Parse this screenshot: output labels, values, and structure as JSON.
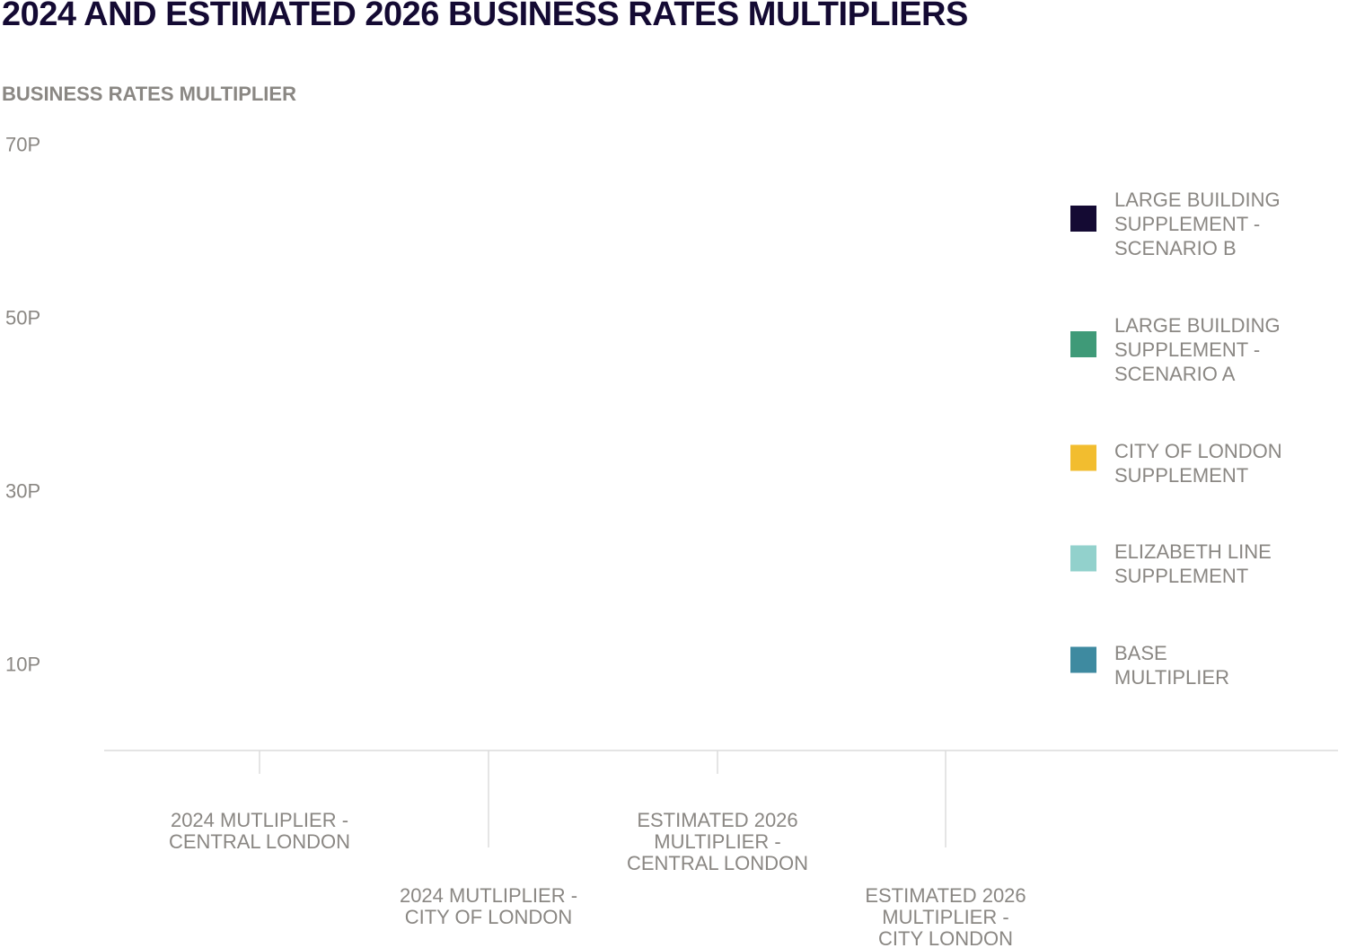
{
  "chart_data": {
    "type": "bar",
    "stacked": true,
    "title": "2024 AND ESTIMATED 2026 BUSINESS RATES MULTIPLIERS",
    "ylabel": "BUSINESS RATES MULTIPLIER",
    "xlabel": "",
    "ylim": [
      0,
      70
    ],
    "yticks": [
      {
        "value": 10,
        "label": "10P"
      },
      {
        "value": 30,
        "label": "30P"
      },
      {
        "value": 50,
        "label": "50P"
      },
      {
        "value": 70,
        "label": "70P"
      }
    ],
    "categories": [
      "2024 MUTLIPLIER - CENTRAL LONDON",
      "2024 MUTLIPLIER - CITY OF LONDON",
      "ESTIMATED 2026 MULTIPLIER - CENTRAL LONDON",
      "ESTIMATED 2026 MULTIPLIER - CITY LONDON"
    ],
    "category_label_lines": [
      [
        "2024 MUTLIPLIER -",
        "CENTRAL LONDON"
      ],
      [
        "2024 MUTLIPLIER -",
        "CITY OF LONDON"
      ],
      [
        "ESTIMATED 2026",
        "MULTIPLIER -",
        "CENTRAL LONDON"
      ],
      [
        "ESTIMATED 2026",
        "MULTIPLIER -",
        "CITY LONDON"
      ]
    ],
    "series": [
      {
        "name": "BASE MULTIPLIER",
        "label_lines": [
          "BASE",
          "MULTIPLIER"
        ],
        "color": "#3e8aa0",
        "values": [
          null,
          null,
          null,
          null
        ]
      },
      {
        "name": "ELIZABETH LINE SUPPLEMENT",
        "label_lines": [
          "ELIZABETH LINE",
          "SUPPLEMENT"
        ],
        "color": "#92d1cc",
        "values": [
          null,
          null,
          null,
          null
        ]
      },
      {
        "name": "CITY OF LONDON SUPPLEMENT",
        "label_lines": [
          "CITY OF LONDON",
          "SUPPLEMENT"
        ],
        "color": "#f2bd2f",
        "values": [
          null,
          null,
          null,
          null
        ]
      },
      {
        "name": "LARGE BUILDING SUPPLEMENT - SCENARIO A",
        "label_lines": [
          "LARGE BUILDING",
          "SUPPLEMENT -",
          "SCENARIO A"
        ],
        "color": "#3f9a78",
        "values": [
          null,
          null,
          null,
          null
        ]
      },
      {
        "name": "LARGE BUILDING SUPPLEMENT - SCENARIO B",
        "label_lines": [
          "LARGE BUILDING",
          "SUPPLEMENT -",
          "SCENARIO B"
        ],
        "color": "#140a33",
        "values": [
          null,
          null,
          null,
          null
        ]
      }
    ],
    "legend_position": "right",
    "grid": false
  }
}
